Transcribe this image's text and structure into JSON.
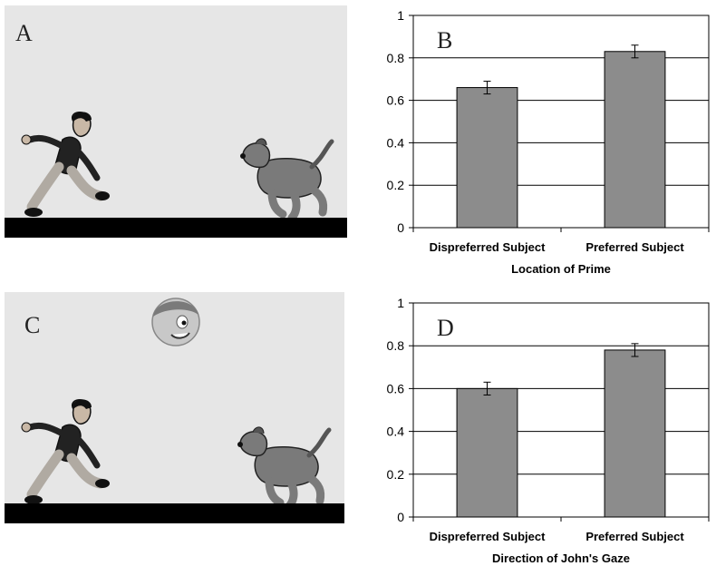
{
  "panels": {
    "a": {
      "letter": "A"
    },
    "c": {
      "letter": "C"
    }
  },
  "figures": {
    "man": "running-man-cartoon",
    "dog": "running-dog-cartoon",
    "boy": "boy-face-cartoon"
  },
  "chart_data": [
    {
      "panel_letter": "B",
      "type": "bar",
      "categories": [
        "Dispreferred Subject",
        "Preferred Subject"
      ],
      "values": [
        0.66,
        0.83
      ],
      "errors": [
        0.03,
        0.03
      ],
      "xlabel": "Location  of Prime",
      "ylabel": "",
      "ylim": [
        0,
        1
      ],
      "yticks": [
        0,
        0.2,
        0.4,
        0.6,
        0.8,
        1
      ],
      "grid": true,
      "bar_color": "#8c8c8c"
    },
    {
      "panel_letter": "D",
      "type": "bar",
      "categories": [
        "Dispreferred Subject",
        "Preferred Subject"
      ],
      "values": [
        0.6,
        0.78
      ],
      "errors": [
        0.03,
        0.03
      ],
      "xlabel": "Direction of John's Gaze",
      "ylabel": "",
      "ylim": [
        0,
        1
      ],
      "yticks": [
        0,
        0.2,
        0.4,
        0.6,
        0.8,
        1
      ],
      "grid": true,
      "bar_color": "#8c8c8c"
    }
  ]
}
